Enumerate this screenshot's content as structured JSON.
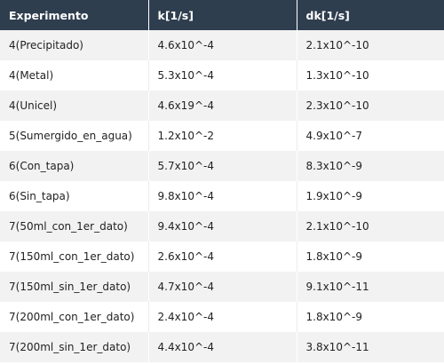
{
  "table": {
    "headers": [
      "Experimento",
      "k[1/s]",
      "dk[1/s]"
    ],
    "rows": [
      [
        "4(Precipitado)",
        "4.6x10^-4",
        "2.1x10^-10"
      ],
      [
        "4(Metal)",
        "5.3x10^-4",
        "1.3x10^-10"
      ],
      [
        "4(Unicel)",
        "4.6x19^-4",
        "2.3x10^-10"
      ],
      [
        "5(Sumergido_en_agua)",
        "1.2x10^-2",
        "4.9x10^-7"
      ],
      [
        "6(Con_tapa)",
        "5.7x10^-4",
        "8.3x10^-9"
      ],
      [
        "6(Sin_tapa)",
        "9.8x10^-4",
        "1.9x10^-9"
      ],
      [
        "7(50ml_con_1er_dato)",
        "9.4x10^-4",
        "2.1x10^-10"
      ],
      [
        "7(150ml_con_1er_dato)",
        "2.6x10^-4",
        "1.8x10^-9"
      ],
      [
        "7(150ml_sin_1er_dato)",
        "4.7x10^-4",
        "9.1x10^-11"
      ],
      [
        "7(200ml_con_1er_dato)",
        "2.4x10^-4",
        "1.8x10^-9"
      ],
      [
        "7(200ml_sin_1er_dato)",
        "4.4x10^-4",
        "3.8x10^-11"
      ]
    ]
  },
  "colors": {
    "header_bg": "#2f3e4f",
    "header_text": "#ffffff",
    "row_alt_bg": "#f2f2f2",
    "row_bg": "#ffffff"
  }
}
